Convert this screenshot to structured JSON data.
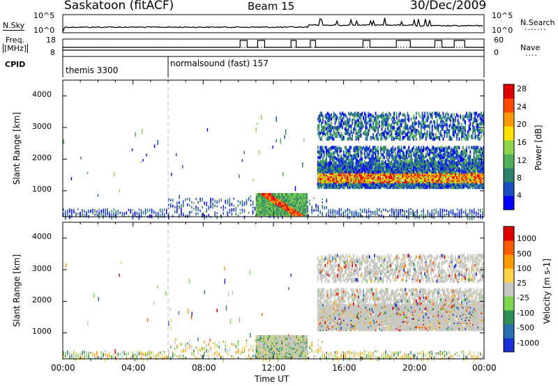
{
  "header": {
    "site": "Saskatoon (fitACF)",
    "beam": "Beam 15",
    "date": "30/Dec/2009"
  },
  "top_panels": {
    "nsky_label": "N.Sky",
    "nsearch_label": "N.Search",
    "nsky_ticks": [
      "10^5",
      "10^0"
    ],
    "nsearch_ticks": [
      "10^5",
      "10^0"
    ],
    "freq_label": "Freq.",
    "freq_unit": "[MHz]",
    "freq_ticks": [
      "18",
      "8"
    ],
    "nave_label": "Nave",
    "nave_ticks": [
      "60",
      "0"
    ],
    "cpid_label": "CPID",
    "cpid_segments": [
      {
        "label": "themis 3300",
        "start_h": 0,
        "end_h": 6
      },
      {
        "label": "normalsound (fast) 157",
        "start_h": 6,
        "end_h": 24
      }
    ],
    "nave_profile": [
      [
        0,
        30
      ],
      [
        10.1,
        30
      ],
      [
        10.1,
        55
      ],
      [
        10.5,
        55
      ],
      [
        10.5,
        30
      ],
      [
        11.1,
        30
      ],
      [
        11.1,
        55
      ],
      [
        11.5,
        55
      ],
      [
        11.5,
        30
      ],
      [
        13.0,
        30
      ],
      [
        13.0,
        55
      ],
      [
        13.3,
        55
      ],
      [
        13.3,
        30
      ],
      [
        14.1,
        30
      ],
      [
        14.1,
        55
      ],
      [
        14.4,
        55
      ],
      [
        14.4,
        30
      ],
      [
        17.1,
        30
      ],
      [
        17.1,
        55
      ],
      [
        17.5,
        55
      ],
      [
        17.5,
        30
      ],
      [
        19.0,
        30
      ],
      [
        19.0,
        55
      ],
      [
        19.8,
        55
      ],
      [
        19.8,
        30
      ],
      [
        21.2,
        30
      ],
      [
        21.2,
        55
      ],
      [
        21.6,
        55
      ],
      [
        21.6,
        30
      ],
      [
        22.3,
        30
      ],
      [
        22.3,
        55
      ],
      [
        22.9,
        55
      ],
      [
        22.9,
        30
      ],
      [
        24,
        30
      ]
    ]
  },
  "chart_data": [
    {
      "type": "heatmap",
      "title": "Power",
      "ylabel": "Slant Range [km]",
      "yticks": [
        "1000",
        "2000",
        "3000",
        "4000"
      ],
      "ylim": [
        180,
        4500
      ],
      "xlim": [
        0,
        24
      ],
      "colorbar_label": "Power [dB]",
      "colorbar_ticks": [
        "4",
        "8",
        "12",
        "16",
        "20",
        "24",
        "28"
      ],
      "colorscale": [
        "#0000ff",
        "#1a4fc4",
        "#2f7f6a",
        "#4fae5a",
        "#8ed34a",
        "#ffe000",
        "#ff9a00",
        "#ff4a00",
        "#e00000"
      ]
    },
    {
      "type": "heatmap",
      "title": "Velocity",
      "ylabel": "Slant Range [km]",
      "yticks": [
        "1000",
        "2000",
        "3000",
        "4000"
      ],
      "ylim": [
        180,
        4500
      ],
      "xlim": [
        0,
        24
      ],
      "colorbar_label": "Velocity [m s-1]",
      "colorbar_ticks": [
        "1000",
        "500",
        "100",
        "25",
        "-25",
        "-100",
        "-500",
        "-1000"
      ],
      "colorscale": [
        "#1a2fcf",
        "#2a6fb0",
        "#2f8f55",
        "#7ed64f",
        "#c8c8c0",
        "#ffd24a",
        "#ff9a00",
        "#ff5a00",
        "#e00000"
      ]
    }
  ],
  "xaxis": {
    "label": "Time UT",
    "ticks": [
      "00:00",
      "04:00",
      "08:00",
      "12:00",
      "16:00",
      "20:00",
      "00:00"
    ]
  }
}
